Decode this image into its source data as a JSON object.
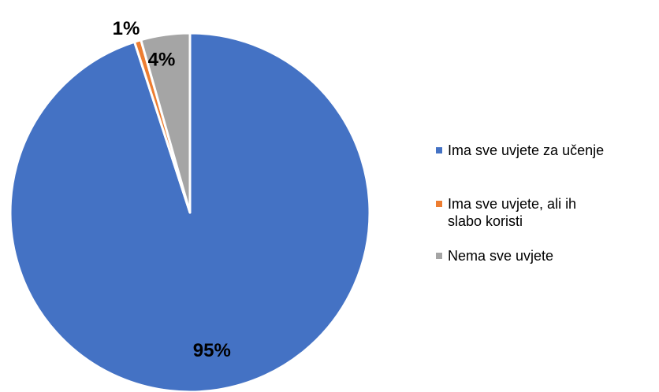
{
  "chart_data": {
    "type": "pie",
    "title": "",
    "slices": [
      {
        "label": "Ima sve uvjete za učenje",
        "value": 95,
        "data_label": "95%",
        "color": "#4472C4"
      },
      {
        "label": "Ima sve uvjete, ali ih\nslabo koristi",
        "value": 0.6,
        "data_label": "1%",
        "color": "#ED7D31"
      },
      {
        "label": "Nema sve uvjete",
        "value": 4.4,
        "data_label": "4%",
        "color": "#A5A5A5"
      }
    ],
    "legend_position": "right"
  }
}
